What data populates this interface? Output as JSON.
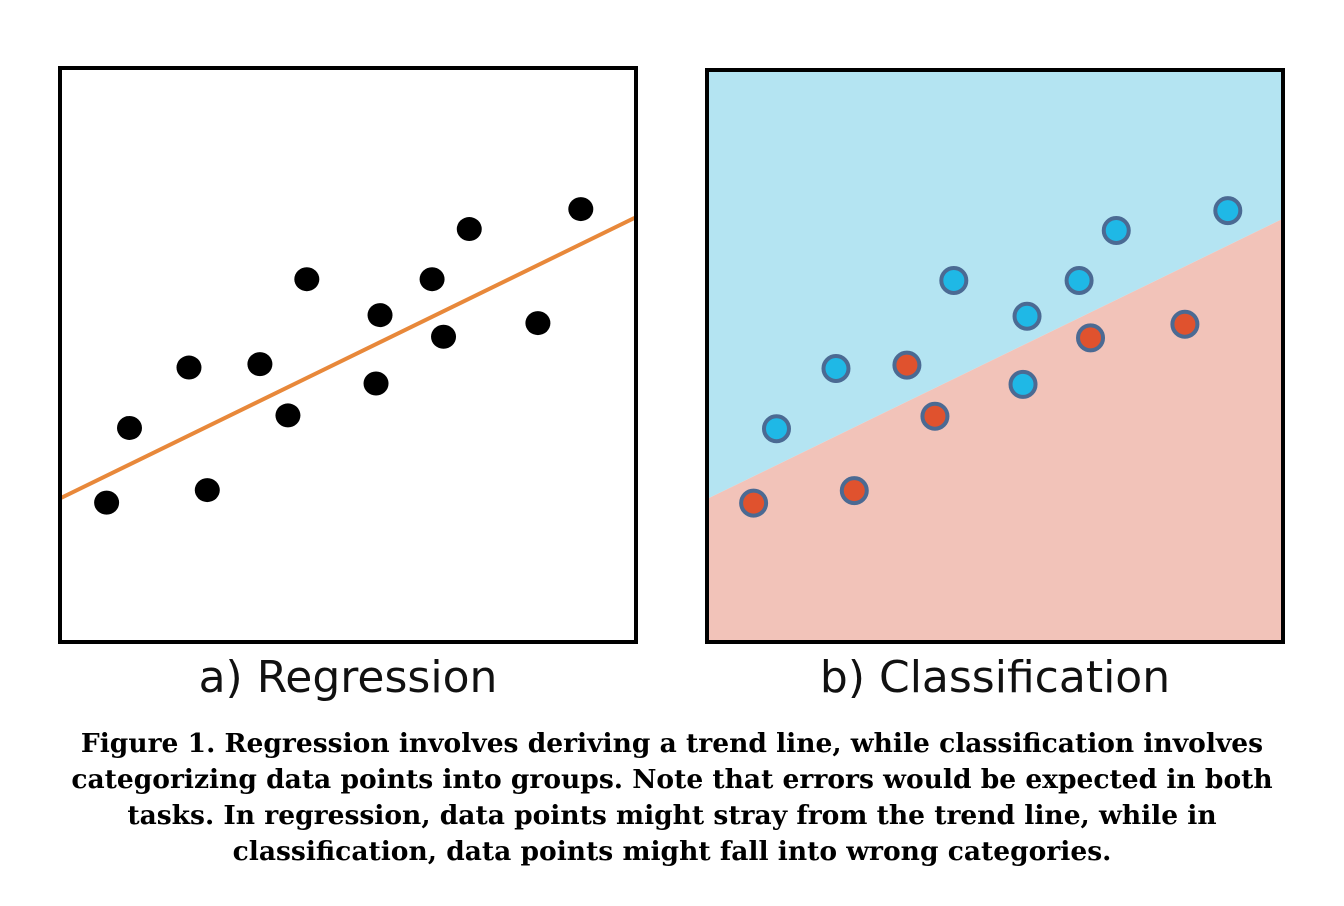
{
  "panels": {
    "regression": {
      "label": "a) Regression",
      "trend_line": {
        "x1": 0.0,
        "y1": 0.25,
        "x2": 1.0,
        "y2": 0.74
      },
      "points": [
        {
          "x": 0.078,
          "y": 0.241
        },
        {
          "x": 0.118,
          "y": 0.372
        },
        {
          "x": 0.222,
          "y": 0.478
        },
        {
          "x": 0.254,
          "y": 0.263
        },
        {
          "x": 0.346,
          "y": 0.484
        },
        {
          "x": 0.395,
          "y": 0.394
        },
        {
          "x": 0.428,
          "y": 0.633
        },
        {
          "x": 0.549,
          "y": 0.45
        },
        {
          "x": 0.556,
          "y": 0.57
        },
        {
          "x": 0.647,
          "y": 0.633
        },
        {
          "x": 0.667,
          "y": 0.532
        },
        {
          "x": 0.712,
          "y": 0.721
        },
        {
          "x": 0.832,
          "y": 0.556
        },
        {
          "x": 0.907,
          "y": 0.756
        }
      ]
    },
    "classification": {
      "label": "b) Classification",
      "boundary": {
        "x1": 0.0,
        "y1": 0.25,
        "x2": 1.0,
        "y2": 0.74
      },
      "upper_region_color": "#b4e4f2",
      "lower_region_color": "#f2c3b9",
      "class_colors": {
        "blue": "#1fb8e6",
        "red": "#e0522e"
      },
      "point_edge_color": "#4b6a93",
      "points": [
        {
          "x": 0.078,
          "y": 0.241,
          "class": "red"
        },
        {
          "x": 0.118,
          "y": 0.372,
          "class": "blue"
        },
        {
          "x": 0.222,
          "y": 0.478,
          "class": "blue"
        },
        {
          "x": 0.254,
          "y": 0.263,
          "class": "red"
        },
        {
          "x": 0.346,
          "y": 0.484,
          "class": "red"
        },
        {
          "x": 0.395,
          "y": 0.394,
          "class": "red"
        },
        {
          "x": 0.428,
          "y": 0.633,
          "class": "blue"
        },
        {
          "x": 0.549,
          "y": 0.45,
          "class": "blue"
        },
        {
          "x": 0.556,
          "y": 0.57,
          "class": "blue"
        },
        {
          "x": 0.647,
          "y": 0.633,
          "class": "blue"
        },
        {
          "x": 0.667,
          "y": 0.532,
          "class": "red"
        },
        {
          "x": 0.712,
          "y": 0.721,
          "class": "blue"
        },
        {
          "x": 0.832,
          "y": 0.556,
          "class": "red"
        },
        {
          "x": 0.907,
          "y": 0.756,
          "class": "blue"
        }
      ]
    }
  },
  "colors": {
    "regression_point": "#000000",
    "trend_line": "#e8883a"
  },
  "caption": "Figure 1. Regression involves deriving a trend line, while classification involves categorizing data points into groups. Note that errors would be expected in both tasks. In regression, data points might stray from the trend line, while in classification, data points might fall into wrong categories."
}
